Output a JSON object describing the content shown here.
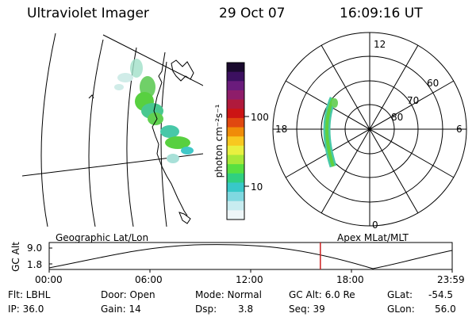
{
  "header": {
    "instrument": "Ultraviolet Imager",
    "date": "29 Oct 07",
    "time": "16:09:16 UT"
  },
  "colorbar": {
    "unit_label": "photon cm⁻²s⁻¹",
    "ticks": [
      "100",
      "10"
    ],
    "colors_top_to_bottom": [
      "#1a0a2e",
      "#3c1060",
      "#6a1c7c",
      "#8e1d6a",
      "#b01a3c",
      "#cc1414",
      "#e04810",
      "#f08c08",
      "#f8c820",
      "#e8f040",
      "#a8e838",
      "#58e040",
      "#30d080",
      "#38c8c8",
      "#80d8e0",
      "#c8ecf0",
      "#eef6f8"
    ]
  },
  "polar_plot": {
    "mlt_labels": [
      "12",
      "18",
      "6",
      "0"
    ],
    "lat_labels": [
      "60",
      "70",
      "80"
    ]
  },
  "altitude_plot": {
    "left_title": "Geographic Lat/Lon",
    "right_title": "Apex MLat/MLT",
    "ylabel": "GC Alt",
    "yticks": [
      "9.0",
      "1.8"
    ],
    "xticks": [
      "00:00",
      "06:00",
      "12:00",
      "18:00",
      "23:59"
    ],
    "current_time_marker_hours": 16.15,
    "marker_color": "#cc2020"
  },
  "footer": {
    "filter": "Flt: LBHL",
    "ip": "IP: 36.0",
    "door": "Door: Open",
    "gain": "Gain: 14",
    "mode": "Mode: Normal",
    "dsp_label": "Dsp:",
    "dsp_value": "3.8",
    "gc_alt": "GC Alt: 6.0 Re",
    "seq": "Seq: 39",
    "glat_label": "GLat:",
    "glat_value": "-54.5",
    "glon_label": "GLon:",
    "glon_value": "56.0"
  }
}
